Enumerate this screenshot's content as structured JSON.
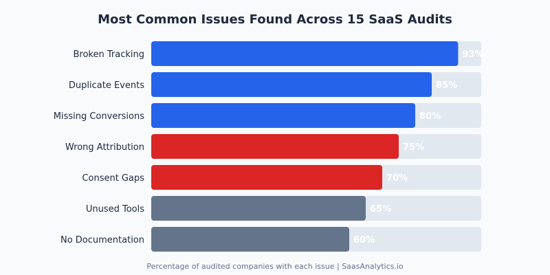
{
  "chart_data": {
    "type": "bar",
    "orientation": "horizontal",
    "title": "Most Common Issues Found Across 15 SaaS Audits",
    "footer": "Percentage of audited companies with each issue | SaasAnalytics.io",
    "categories": [
      "Broken Tracking",
      "Duplicate Events",
      "Missing Conversions",
      "Wrong Attribution",
      "Consent Gaps",
      "Unused Tools",
      "No Documentation"
    ],
    "values": [
      93,
      85,
      80,
      75,
      70,
      65,
      60
    ],
    "value_labels": [
      "93%",
      "85%",
      "80%",
      "75%",
      "70%",
      "65%",
      "60%"
    ],
    "bar_colors": [
      "#2563eb",
      "#2563eb",
      "#2563eb",
      "#dc2626",
      "#dc2626",
      "#64748b",
      "#64748b"
    ],
    "track_color": "#e2e8f0",
    "xlim": [
      0,
      100
    ],
    "grid": false
  }
}
